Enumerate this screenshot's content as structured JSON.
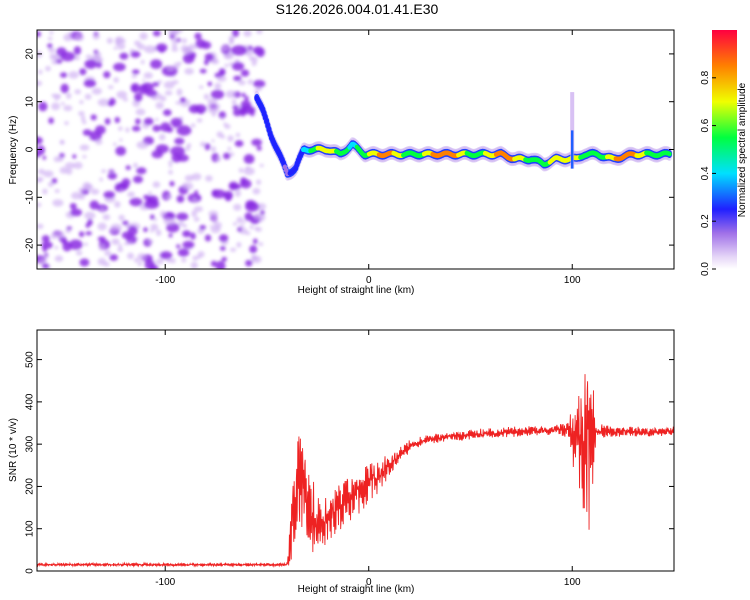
{
  "title": "S126.2026.004.01.41.E30",
  "colors": {
    "snr_line": "#ee2222",
    "speckle_a": "#8a2be2",
    "speckle_b": "#c9a6f2",
    "axis": "#000000"
  },
  "chart_data": [
    {
      "type": "heatmap",
      "name": "spectrogram",
      "xlabel": "Height of straight line (km)",
      "ylabel": "Frequency (Hz)",
      "xlim": [
        -163,
        150
      ],
      "ylim": [
        -25,
        25
      ],
      "xticks": [
        -100,
        0,
        100
      ],
      "yticks": [
        -20,
        -10,
        0,
        10,
        20
      ],
      "colorbar": {
        "label": "Normalized spectral amplitude",
        "range": [
          0,
          1
        ],
        "ticks": [
          0.0,
          0.2,
          0.4,
          0.6,
          0.8
        ]
      },
      "noise_region_x": [
        -163,
        -52
      ],
      "ridge": {
        "x": [
          -55,
          -52,
          -48,
          -44,
          -40,
          -36,
          -32,
          -28,
          -24,
          -20,
          -14,
          -8,
          -2,
          2,
          8,
          15,
          25,
          35,
          45,
          55,
          65,
          72,
          80,
          86,
          92,
          98,
          102,
          106,
          112,
          120,
          130,
          140,
          148
        ],
        "freq": [
          11,
          8,
          3,
          -1,
          -5,
          -4,
          0,
          0,
          0,
          0,
          -1,
          1,
          -1,
          -1,
          -1,
          -1,
          -1,
          -1,
          -1,
          -1,
          -1,
          -2,
          -2,
          -3,
          -2,
          -2,
          -2,
          -1,
          -1,
          -2,
          -1,
          -1,
          -1
        ],
        "amp": [
          0.35,
          0.4,
          0.45,
          0.4,
          0.4,
          0.5,
          0.6,
          0.7,
          0.75,
          0.8,
          0.8,
          0.85,
          0.85,
          0.85,
          0.9,
          0.9,
          0.95,
          0.95,
          0.95,
          0.95,
          0.9,
          0.9,
          0.9,
          0.9,
          0.85,
          0.85,
          0.8,
          0.85,
          0.9,
          0.95,
          0.9,
          0.9,
          0.85
        ]
      },
      "spike_at_x": 100,
      "spike_freq_range": [
        -4,
        12
      ]
    },
    {
      "type": "line",
      "name": "snr",
      "xlabel": "Height of straight line (km)",
      "ylabel": "SNR (10 * v/v)",
      "xlim": [
        -163,
        150
      ],
      "ylim": [
        0,
        570
      ],
      "xticks": [
        -100,
        0,
        100
      ],
      "yticks": [
        0,
        100,
        200,
        300,
        400,
        500
      ],
      "envelope": {
        "x": [
          -163,
          -40,
          -37,
          -34,
          -30,
          -25,
          -20,
          -15,
          -10,
          -5,
          0,
          5,
          10,
          15,
          20,
          25,
          30,
          40,
          50,
          60,
          70,
          80,
          90,
          98,
          104,
          108,
          112,
          120,
          130,
          140,
          150
        ],
        "mean": [
          15,
          15,
          120,
          220,
          150,
          110,
          130,
          150,
          170,
          190,
          210,
          220,
          250,
          275,
          295,
          305,
          312,
          318,
          322,
          326,
          329,
          332,
          334,
          335,
          300,
          330,
          332,
          330,
          330,
          328,
          330
        ],
        "amplitude": [
          3,
          3,
          90,
          110,
          80,
          60,
          55,
          50,
          50,
          45,
          40,
          35,
          25,
          15,
          12,
          10,
          10,
          10,
          10,
          10,
          10,
          10,
          10,
          15,
          120,
          200,
          15,
          10,
          10,
          10,
          10
        ]
      }
    }
  ]
}
